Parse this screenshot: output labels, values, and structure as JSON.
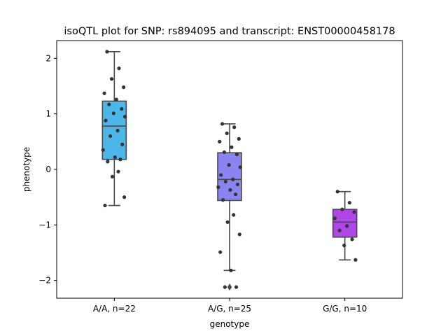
{
  "chart_data": {
    "type": "box",
    "title": "isoQTL plot for SNP: rs894095 and transcript: ENST00000458178",
    "xlabel": "genotype",
    "ylabel": "phenotype",
    "ylim": [
      -2.32,
      2.32
    ],
    "yticks": [
      -2,
      -1,
      0,
      1,
      2
    ],
    "ytick_labels": [
      "−2",
      "−1",
      "0",
      "1",
      "2"
    ],
    "grid": false,
    "categories": [
      "A/A, n=22",
      "A/G, n=25",
      "G/G, n=10"
    ],
    "boxes": [
      {
        "label": "A/A, n=22",
        "color": "#4db6e8",
        "q1": 0.18,
        "median": 0.78,
        "q3": 1.23,
        "whisker_low": -0.65,
        "whisker_high": 2.12,
        "outliers": [],
        "points": [
          2.12,
          1.82,
          1.63,
          1.48,
          1.37,
          1.26,
          1.17,
          1.09,
          1.01,
          0.95,
          0.88,
          0.7,
          0.6,
          0.45,
          0.35,
          0.22,
          0.18,
          0.14,
          -0.04,
          -0.13,
          -0.5,
          -0.65
        ]
      },
      {
        "label": "A/G, n=25",
        "color": "#8a84f0",
        "q1": -0.56,
        "median": -0.18,
        "q3": 0.3,
        "whisker_low": -1.82,
        "whisker_high": 0.82,
        "outliers": [
          -2.12
        ],
        "points": [
          0.82,
          0.76,
          0.65,
          0.55,
          0.5,
          0.4,
          0.31,
          0.27,
          0.08,
          0.04,
          -0.1,
          -0.18,
          -0.22,
          -0.27,
          -0.32,
          -0.37,
          -0.45,
          -0.55,
          -0.82,
          -0.95,
          -1.17,
          -1.49,
          -1.82,
          -2.12,
          -2.12
        ]
      },
      {
        "label": "G/G, n=10",
        "color": "#b045e8",
        "q1": -1.22,
        "median": -0.95,
        "q3": -0.72,
        "whisker_low": -1.63,
        "whisker_high": -0.4,
        "outliers": [],
        "points": [
          -0.4,
          -0.6,
          -0.72,
          -0.77,
          -0.88,
          -1.02,
          -1.1,
          -1.26,
          -1.37,
          -1.63
        ]
      }
    ]
  }
}
